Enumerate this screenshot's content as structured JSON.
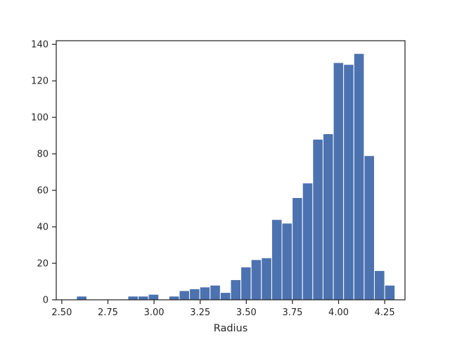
{
  "chart_data": {
    "type": "bar",
    "xlabel": "Radius",
    "ylabel": "",
    "title": "",
    "xlim": [
      2.47,
      4.36
    ],
    "ylim": [
      0,
      142
    ],
    "bar_color": "#4c72b0",
    "bin_width": 0.05566,
    "bins": [
      {
        "x0": 2.58,
        "count": 2
      },
      {
        "x0": 2.6357,
        "count": 0
      },
      {
        "x0": 2.6913,
        "count": 0
      },
      {
        "x0": 2.747,
        "count": 0
      },
      {
        "x0": 2.8027,
        "count": 0
      },
      {
        "x0": 2.8583,
        "count": 2
      },
      {
        "x0": 2.914,
        "count": 2
      },
      {
        "x0": 2.9696,
        "count": 3
      },
      {
        "x0": 3.0253,
        "count": 0
      },
      {
        "x0": 3.081,
        "count": 2
      },
      {
        "x0": 3.1366,
        "count": 5
      },
      {
        "x0": 3.1923,
        "count": 6
      },
      {
        "x0": 3.248,
        "count": 7
      },
      {
        "x0": 3.3036,
        "count": 8
      },
      {
        "x0": 3.3593,
        "count": 4
      },
      {
        "x0": 3.4149,
        "count": 11
      },
      {
        "x0": 3.4706,
        "count": 18
      },
      {
        "x0": 3.5263,
        "count": 22
      },
      {
        "x0": 3.5819,
        "count": 23
      },
      {
        "x0": 3.6376,
        "count": 44
      },
      {
        "x0": 3.6932,
        "count": 42
      },
      {
        "x0": 3.7489,
        "count": 56
      },
      {
        "x0": 3.8046,
        "count": 64
      },
      {
        "x0": 3.8602,
        "count": 88
      },
      {
        "x0": 3.9159,
        "count": 91
      },
      {
        "x0": 3.9716,
        "count": 130
      },
      {
        "x0": 4.0272,
        "count": 129
      },
      {
        "x0": 4.0829,
        "count": 135
      },
      {
        "x0": 4.1385,
        "count": 79
      },
      {
        "x0": 4.1942,
        "count": 16
      },
      {
        "x0": 4.2499,
        "count": 8
      }
    ],
    "x_ticks": [
      2.5,
      2.75,
      3.0,
      3.25,
      3.5,
      3.75,
      4.0,
      4.25
    ],
    "x_tick_labels": [
      "2.50",
      "2.75",
      "3.00",
      "3.25",
      "3.50",
      "3.75",
      "4.00",
      "4.25"
    ],
    "y_ticks": [
      0,
      20,
      40,
      60,
      80,
      100,
      120,
      140
    ],
    "y_tick_labels": [
      "0",
      "20",
      "40",
      "60",
      "80",
      "100",
      "120",
      "140"
    ],
    "grid": false,
    "legend": "none"
  }
}
